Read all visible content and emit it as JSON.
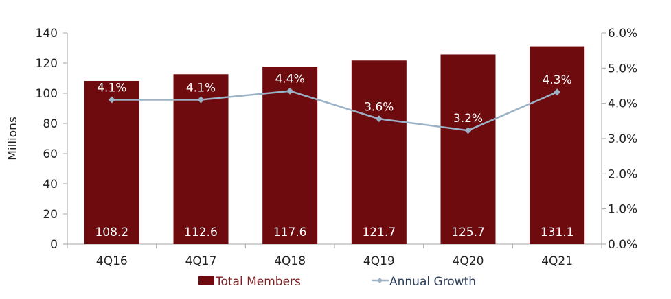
{
  "chart_data": {
    "type": "bar+line",
    "categories": [
      "4Q16",
      "4Q17",
      "4Q18",
      "4Q19",
      "4Q20",
      "4Q21"
    ],
    "series": [
      {
        "name": "Total Members",
        "type": "bar",
        "axis": "left",
        "values": [
          108.2,
          112.6,
          117.6,
          121.7,
          125.7,
          131.1
        ],
        "labels": [
          "108.2",
          "112.6",
          "117.6",
          "121.7",
          "125.7",
          "131.1"
        ],
        "color": "#6e0b0e"
      },
      {
        "name": "Annual Growth",
        "type": "line",
        "axis": "right",
        "values": [
          4.1,
          4.1,
          4.35,
          3.56,
          3.23,
          4.32
        ],
        "labels": [
          "4.1%",
          "4.1%",
          "4.4%",
          "3.6%",
          "3.2%",
          "4.3%"
        ],
        "color": "#9bb1c5"
      }
    ],
    "ylabel": "Millions",
    "ylim": [
      0,
      140
    ],
    "yticks": [
      "0",
      "20",
      "40",
      "60",
      "80",
      "100",
      "120",
      "140"
    ],
    "y2lim": [
      0,
      6
    ],
    "y2ticks": [
      "0.0%",
      "1.0%",
      "2.0%",
      "3.0%",
      "4.0%",
      "5.0%",
      "6.0%"
    ],
    "grid": false,
    "legend": "bottom"
  }
}
